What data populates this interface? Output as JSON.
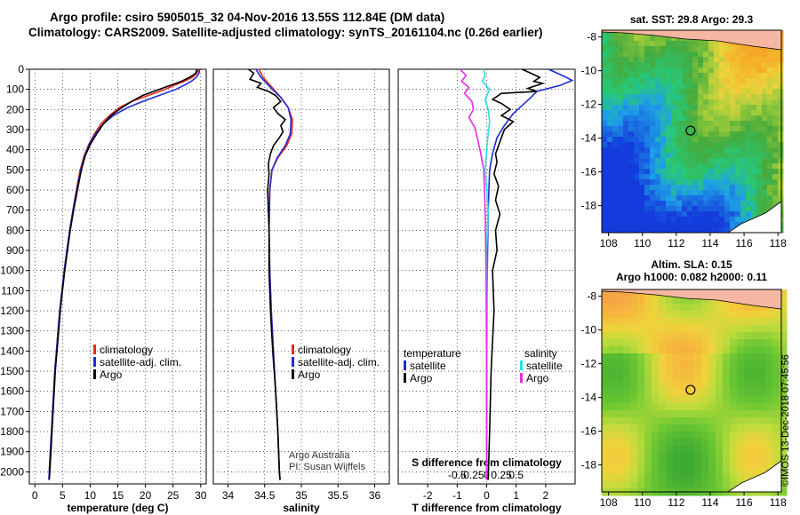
{
  "header": {
    "line1": "Argo profile: csiro 5905015_32 04-Nov-2016 13.55S 112.84E (DM data)",
    "line2": "Climatology: CARS2009. Satellite-adjusted climatology: synTS_20161104.nc (0.26d earlier)"
  },
  "colors": {
    "climatology": "#e8281e",
    "satellite": "#1f2bd6",
    "argo": "#000000",
    "sat_S": "#27e0e6",
    "argo_S": "#e52de5"
  },
  "depth_axis": {
    "ticks": [
      0,
      100,
      200,
      300,
      400,
      500,
      600,
      700,
      800,
      900,
      1000,
      1100,
      1200,
      1300,
      1400,
      1500,
      1600,
      1700,
      1800,
      1900,
      2000
    ],
    "range": [
      0,
      2060
    ]
  },
  "chart_data": [
    {
      "type": "line",
      "id": "temperature",
      "xlabel": "temperature (deg C)",
      "xlim": [
        -1,
        31
      ],
      "xticks": [
        0,
        5,
        10,
        15,
        20,
        25,
        30
      ],
      "legend": {
        "labels": [
          "climatology",
          "satellite-adj. clim.",
          "Argo"
        ]
      },
      "series": [
        {
          "name": "climatology",
          "color": "#e8281e",
          "points": [
            [
              29.6,
              0
            ],
            [
              29.3,
              20
            ],
            [
              28.5,
              40
            ],
            [
              27.0,
              60
            ],
            [
              25.2,
              80
            ],
            [
              23.5,
              100
            ],
            [
              20.5,
              130
            ],
            [
              17.5,
              160
            ],
            [
              15.3,
              190
            ],
            [
              13.5,
              230
            ],
            [
              12.0,
              270
            ],
            [
              10.8,
              320
            ],
            [
              9.8,
              370
            ],
            [
              8.9,
              430
            ],
            [
              8.2,
              500
            ],
            [
              7.5,
              600
            ],
            [
              6.9,
              700
            ],
            [
              6.3,
              800
            ],
            [
              5.8,
              900
            ],
            [
              5.3,
              1000
            ],
            [
              4.9,
              1100
            ],
            [
              4.5,
              1200
            ],
            [
              4.2,
              1300
            ],
            [
              3.9,
              1400
            ],
            [
              3.6,
              1500
            ],
            [
              3.4,
              1600
            ],
            [
              3.2,
              1700
            ],
            [
              3.0,
              1800
            ],
            [
              2.8,
              1900
            ],
            [
              2.6,
              2000
            ],
            [
              2.55,
              2040
            ]
          ]
        },
        {
          "name": "satellite-adj. clim.",
          "color": "#1f2bd6",
          "points": [
            [
              29.8,
              0
            ],
            [
              29.7,
              20
            ],
            [
              29.2,
              40
            ],
            [
              28.3,
              60
            ],
            [
              27.0,
              80
            ],
            [
              25.5,
              100
            ],
            [
              22.5,
              130
            ],
            [
              19.5,
              160
            ],
            [
              16.8,
              190
            ],
            [
              14.2,
              230
            ],
            [
              12.4,
              270
            ],
            [
              11.0,
              320
            ],
            [
              9.9,
              370
            ],
            [
              9.0,
              430
            ],
            [
              8.3,
              500
            ],
            [
              7.6,
              600
            ],
            [
              6.9,
              700
            ],
            [
              6.3,
              800
            ],
            [
              5.8,
              900
            ],
            [
              5.3,
              1000
            ],
            [
              4.9,
              1100
            ],
            [
              4.5,
              1200
            ],
            [
              4.2,
              1300
            ],
            [
              3.9,
              1400
            ],
            [
              3.6,
              1500
            ],
            [
              3.4,
              1600
            ],
            [
              3.2,
              1700
            ],
            [
              3.0,
              1800
            ],
            [
              2.8,
              1900
            ],
            [
              2.6,
              2000
            ],
            [
              2.55,
              2040
            ]
          ]
        },
        {
          "name": "Argo",
          "color": "#000000",
          "points": [
            [
              29.3,
              0
            ],
            [
              29.1,
              20
            ],
            [
              28.0,
              40
            ],
            [
              26.5,
              60
            ],
            [
              24.5,
              80
            ],
            [
              22.0,
              105
            ],
            [
              19.5,
              130
            ],
            [
              17.5,
              160
            ],
            [
              15.5,
              195
            ],
            [
              13.8,
              230
            ],
            [
              12.3,
              275
            ],
            [
              11.2,
              320
            ],
            [
              10.1,
              370
            ],
            [
              9.1,
              430
            ],
            [
              8.4,
              500
            ],
            [
              7.7,
              600
            ],
            [
              7.0,
              700
            ],
            [
              6.4,
              800
            ],
            [
              5.9,
              900
            ],
            [
              5.4,
              1000
            ],
            [
              5.0,
              1100
            ],
            [
              4.6,
              1200
            ],
            [
              4.3,
              1300
            ],
            [
              4.0,
              1400
            ],
            [
              3.7,
              1500
            ],
            [
              3.5,
              1600
            ],
            [
              3.3,
              1700
            ],
            [
              3.1,
              1800
            ],
            [
              2.9,
              1900
            ],
            [
              2.7,
              2000
            ],
            [
              2.6,
              2040
            ]
          ]
        }
      ]
    },
    {
      "type": "line",
      "id": "salinity",
      "xlabel": "salinity",
      "xlim": [
        33.8,
        36.2
      ],
      "xticks": [
        34,
        34.5,
        35,
        35.5,
        36
      ],
      "legend": {
        "labels": [
          "climatology",
          "satellite-adj. clim.",
          "Argo"
        ]
      },
      "annotation": [
        "Argo Australia",
        "PI: Susan Wijffels"
      ],
      "series": [
        {
          "name": "climatology",
          "color": "#e8281e",
          "points": [
            [
              34.42,
              0
            ],
            [
              34.48,
              40
            ],
            [
              34.6,
              90
            ],
            [
              34.72,
              140
            ],
            [
              34.82,
              190
            ],
            [
              34.88,
              250
            ],
            [
              34.87,
              320
            ],
            [
              34.8,
              380
            ],
            [
              34.68,
              440
            ],
            [
              34.6,
              500
            ],
            [
              34.57,
              600
            ],
            [
              34.56,
              800
            ],
            [
              34.57,
              1000
            ],
            [
              34.59,
              1200
            ],
            [
              34.62,
              1400
            ],
            [
              34.65,
              1600
            ],
            [
              34.68,
              1800
            ],
            [
              34.7,
              2000
            ],
            [
              34.71,
              2040
            ]
          ]
        },
        {
          "name": "satellite-adj. clim.",
          "color": "#1f2bd6",
          "points": [
            [
              34.38,
              0
            ],
            [
              34.45,
              40
            ],
            [
              34.58,
              90
            ],
            [
              34.72,
              140
            ],
            [
              34.82,
              190
            ],
            [
              34.86,
              250
            ],
            [
              34.85,
              320
            ],
            [
              34.78,
              380
            ],
            [
              34.67,
              440
            ],
            [
              34.6,
              500
            ],
            [
              34.57,
              600
            ],
            [
              34.56,
              800
            ],
            [
              34.57,
              1000
            ],
            [
              34.59,
              1200
            ],
            [
              34.62,
              1400
            ],
            [
              34.65,
              1600
            ],
            [
              34.68,
              1800
            ],
            [
              34.7,
              2000
            ],
            [
              34.71,
              2040
            ]
          ]
        },
        {
          "name": "Argo",
          "color": "#000000",
          "points": [
            [
              34.28,
              0
            ],
            [
              34.35,
              20
            ],
            [
              34.3,
              50
            ],
            [
              34.45,
              70
            ],
            [
              34.4,
              90
            ],
            [
              34.55,
              110
            ],
            [
              34.65,
              130
            ],
            [
              34.72,
              160
            ],
            [
              34.62,
              190
            ],
            [
              34.68,
              220
            ],
            [
              34.78,
              250
            ],
            [
              34.72,
              280
            ],
            [
              34.75,
              310
            ],
            [
              34.7,
              340
            ],
            [
              34.62,
              380
            ],
            [
              34.58,
              420
            ],
            [
              34.55,
              470
            ],
            [
              34.56,
              520
            ],
            [
              34.54,
              600
            ],
            [
              34.55,
              700
            ],
            [
              34.56,
              800
            ],
            [
              34.56,
              1000
            ],
            [
              34.58,
              1200
            ],
            [
              34.61,
              1400
            ],
            [
              34.65,
              1600
            ],
            [
              34.68,
              1800
            ],
            [
              34.7,
              2000
            ],
            [
              34.71,
              2040
            ]
          ]
        }
      ]
    },
    {
      "type": "line",
      "id": "difference",
      "xlabel": "T difference from climatology",
      "xlabel2": "S difference from climatology",
      "xlim": [
        -3,
        3
      ],
      "xticks": [
        -2,
        -1,
        0,
        1,
        2
      ],
      "xticks_S": [
        "-0.5",
        "-0.25",
        "0",
        "0.25",
        "0.5"
      ],
      "legend_left_title": "temperature",
      "legend_right_title": "salinity",
      "legend": {
        "labels": [
          "satellite",
          "Argo",
          "satellite",
          "Argo"
        ]
      },
      "series": [
        {
          "name": "satellite",
          "color": "#1f2bd6",
          "points": [
            [
              2.1,
              0
            ],
            [
              2.4,
              20
            ],
            [
              2.7,
              40
            ],
            [
              2.9,
              55
            ],
            [
              2.5,
              80
            ],
            [
              1.7,
              110
            ],
            [
              1.5,
              140
            ],
            [
              1.2,
              180
            ],
            [
              0.9,
              220
            ],
            [
              0.6,
              280
            ],
            [
              0.35,
              340
            ],
            [
              0.2,
              420
            ],
            [
              0.1,
              500
            ],
            [
              0.05,
              700
            ],
            [
              0.02,
              1000
            ],
            [
              0,
              1500
            ],
            [
              0,
              2040
            ]
          ]
        },
        {
          "name": "Argo",
          "color": "#000000",
          "points": [
            [
              1.2,
              0
            ],
            [
              1.5,
              20
            ],
            [
              1.8,
              40
            ],
            [
              1.6,
              60
            ],
            [
              1.9,
              70
            ],
            [
              1.4,
              95
            ],
            [
              1.7,
              110
            ],
            [
              0.5,
              120
            ],
            [
              0.2,
              150
            ],
            [
              0.5,
              170
            ],
            [
              0.8,
              200
            ],
            [
              0.5,
              230
            ],
            [
              0.9,
              260
            ],
            [
              0.6,
              300
            ],
            [
              0.4,
              380
            ],
            [
              0.3,
              420
            ],
            [
              0.35,
              460
            ],
            [
              0.25,
              520
            ],
            [
              0.4,
              580
            ],
            [
              0.3,
              650
            ],
            [
              0.45,
              720
            ],
            [
              0.3,
              800
            ],
            [
              0.35,
              900
            ],
            [
              0.2,
              1000
            ],
            [
              0.25,
              1200
            ],
            [
              0.15,
              1500
            ],
            [
              0.1,
              1800
            ],
            [
              0.05,
              2040
            ]
          ]
        },
        {
          "name": "satellite",
          "color": "#27e0e6",
          "points": [
            [
              -0.1,
              0
            ],
            [
              -0.05,
              30
            ],
            [
              -0.15,
              60
            ],
            [
              0.1,
              100
            ],
            [
              -0.05,
              150
            ],
            [
              0.05,
              200
            ],
            [
              0.1,
              260
            ],
            [
              0.05,
              320
            ],
            [
              0,
              400
            ],
            [
              -0.05,
              500
            ],
            [
              0.05,
              700
            ],
            [
              0,
              900
            ],
            [
              0.02,
              1200
            ],
            [
              0,
              1500
            ],
            [
              0,
              2040
            ]
          ]
        },
        {
          "name": "Argo",
          "color": "#e52de5",
          "points": [
            [
              -0.9,
              0
            ],
            [
              -0.7,
              30
            ],
            [
              -0.85,
              60
            ],
            [
              -0.6,
              90
            ],
            [
              -0.75,
              120
            ],
            [
              -0.5,
              160
            ],
            [
              -0.45,
              200
            ],
            [
              -0.6,
              240
            ],
            [
              -0.4,
              290
            ],
            [
              -0.3,
              350
            ],
            [
              -0.2,
              420
            ],
            [
              -0.1,
              500
            ],
            [
              -0.05,
              700
            ],
            [
              -0.02,
              1000
            ],
            [
              0,
              1500
            ],
            [
              0,
              2040
            ]
          ]
        }
      ]
    }
  ],
  "maps": [
    {
      "title": "sat. SST: 29.8 Argo: 29.3",
      "title2": "",
      "xticks": [
        "108",
        "110",
        "112",
        "114",
        "116",
        "118"
      ],
      "yticks": [
        "-8",
        "-10",
        "-12",
        "-14",
        "-16",
        "-18"
      ],
      "palette": "sst",
      "float_marker": [
        112.84,
        -13.55
      ]
    },
    {
      "title": "Altim. SLA: 0.15",
      "title2": "Argo h1000: 0.082 h2000: 0.11",
      "xticks": [
        "108",
        "110",
        "112",
        "114",
        "116",
        "118"
      ],
      "yticks": [
        "-8",
        "-10",
        "-12",
        "-14",
        "-16",
        "-18"
      ],
      "palette": "sla",
      "float_marker": [
        112.84,
        -13.55
      ]
    }
  ],
  "footer": {
    "credit": "©IMOS 13-Dec-2018 07:45:56"
  }
}
